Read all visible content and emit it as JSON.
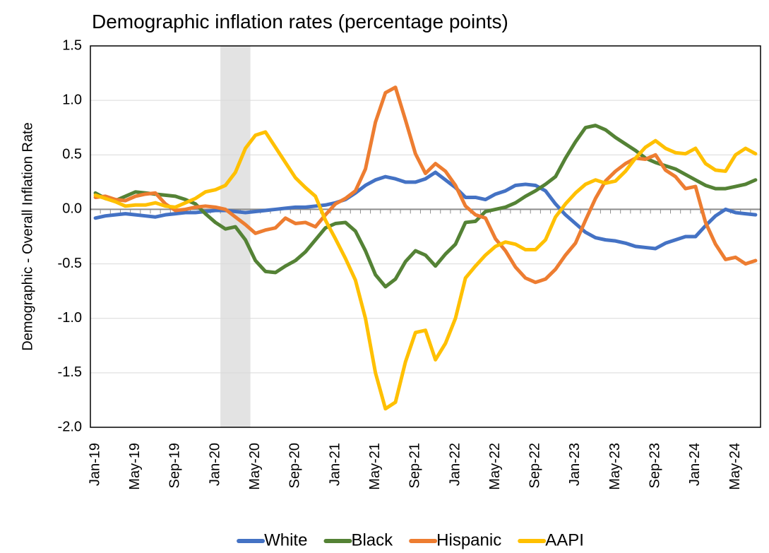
{
  "chart_data": {
    "type": "line",
    "title": "Demographic inflation rates (percentage points)",
    "y_label": "Demographic - Overall Inflation Rate",
    "categories": [
      "Jan-19",
      null,
      null,
      null,
      "May-19",
      null,
      null,
      null,
      "Sep-19",
      null,
      null,
      null,
      "Jan-20",
      null,
      null,
      null,
      "May-20",
      null,
      null,
      null,
      "Sep-20",
      null,
      null,
      null,
      "Jan-21",
      null,
      null,
      null,
      "May-21",
      null,
      null,
      null,
      "Sep-21",
      null,
      null,
      null,
      "Jan-22",
      null,
      null,
      null,
      "May-22",
      null,
      null,
      null,
      "Sep-22",
      null,
      null,
      null,
      "Jan-23",
      null,
      null,
      null,
      "May-23",
      null,
      null,
      null,
      "Sep-23",
      null,
      null,
      null,
      "Jan-24",
      null,
      null,
      null,
      "May-24",
      null,
      null
    ],
    "series": [
      {
        "name": "White",
        "color": "#4472c4",
        "values": [
          -0.08,
          -0.06,
          -0.05,
          -0.04,
          -0.05,
          -0.06,
          -0.07,
          -0.05,
          -0.04,
          -0.03,
          -0.03,
          -0.02,
          -0.01,
          -0.01,
          -0.02,
          -0.03,
          -0.02,
          -0.01,
          0.0,
          0.01,
          0.02,
          0.02,
          0.03,
          0.04,
          0.06,
          0.09,
          0.15,
          0.22,
          0.27,
          0.3,
          0.28,
          0.25,
          0.25,
          0.28,
          0.34,
          0.27,
          0.2,
          0.11,
          0.11,
          0.09,
          0.14,
          0.17,
          0.22,
          0.23,
          0.22,
          0.17,
          0.05,
          -0.05,
          -0.13,
          -0.21,
          -0.26,
          -0.28,
          -0.29,
          -0.31,
          -0.34,
          -0.35,
          -0.36,
          -0.31,
          -0.28,
          -0.25,
          -0.25,
          -0.15,
          -0.06,
          0.0,
          -0.03,
          -0.04,
          -0.05
        ]
      },
      {
        "name": "Black",
        "color": "#548235",
        "values": [
          0.15,
          0.1,
          0.08,
          0.12,
          0.16,
          0.15,
          0.14,
          0.13,
          0.12,
          0.09,
          0.05,
          -0.04,
          -0.12,
          -0.18,
          -0.16,
          -0.28,
          -0.47,
          -0.57,
          -0.58,
          -0.52,
          -0.47,
          -0.39,
          -0.28,
          -0.17,
          -0.13,
          -0.12,
          -0.2,
          -0.38,
          -0.6,
          -0.71,
          -0.64,
          -0.48,
          -0.38,
          -0.42,
          -0.52,
          -0.41,
          -0.32,
          -0.12,
          -0.11,
          -0.02,
          0.0,
          0.02,
          0.06,
          0.12,
          0.17,
          0.23,
          0.3,
          0.47,
          0.62,
          0.75,
          0.77,
          0.73,
          0.66,
          0.6,
          0.54,
          0.47,
          0.43,
          0.4,
          0.37,
          0.32,
          0.27,
          0.22,
          0.19,
          0.19,
          0.21,
          0.23,
          0.27
        ]
      },
      {
        "name": "Hispanic",
        "color": "#ed7d31",
        "values": [
          0.11,
          0.12,
          0.09,
          0.08,
          0.12,
          0.14,
          0.15,
          0.05,
          -0.01,
          0.0,
          0.02,
          0.03,
          0.02,
          0.0,
          -0.07,
          -0.14,
          -0.22,
          -0.19,
          -0.17,
          -0.08,
          -0.13,
          -0.12,
          -0.16,
          -0.05,
          0.05,
          0.1,
          0.17,
          0.37,
          0.8,
          1.07,
          1.12,
          0.82,
          0.51,
          0.33,
          0.42,
          0.35,
          0.22,
          0.03,
          -0.05,
          -0.08,
          -0.27,
          -0.38,
          -0.53,
          -0.63,
          -0.67,
          -0.64,
          -0.55,
          -0.42,
          -0.31,
          -0.1,
          0.1,
          0.26,
          0.35,
          0.42,
          0.47,
          0.46,
          0.5,
          0.36,
          0.3,
          0.19,
          0.21,
          -0.12,
          -0.32,
          -0.46,
          -0.44,
          -0.5,
          -0.47
        ]
      },
      {
        "name": "AAPI",
        "color": "#ffc000",
        "values": [
          0.13,
          0.1,
          0.07,
          0.03,
          0.04,
          0.04,
          0.06,
          0.03,
          0.02,
          0.06,
          0.1,
          0.16,
          0.18,
          0.22,
          0.34,
          0.56,
          0.68,
          0.71,
          0.57,
          0.43,
          0.29,
          0.2,
          0.12,
          -0.1,
          -0.27,
          -0.45,
          -0.65,
          -1.0,
          -1.5,
          -1.83,
          -1.77,
          -1.4,
          -1.13,
          -1.11,
          -1.38,
          -1.23,
          -1.0,
          -0.63,
          -0.52,
          -0.42,
          -0.34,
          -0.3,
          -0.32,
          -0.37,
          -0.37,
          -0.28,
          -0.07,
          0.05,
          0.15,
          0.23,
          0.27,
          0.24,
          0.26,
          0.35,
          0.47,
          0.57,
          0.63,
          0.56,
          0.52,
          0.51,
          0.56,
          0.42,
          0.36,
          0.35,
          0.5,
          0.56,
          0.51
        ]
      }
    ],
    "ylim": [
      -2,
      1.5
    ],
    "yticks": [
      -1.5,
      {
        "value": -2,
        "label": "-2.0"
      },
      {
        "value": -1,
        "label": "-1.0"
      },
      -0.5,
      {
        "value": 0,
        "label": "0.0"
      },
      0.5,
      {
        "value": 1,
        "label": "1.0"
      },
      1.5
    ],
    "shaded_range": [
      13,
      15
    ],
    "shade_color": "#e3e3e3",
    "grid": true,
    "legend": "bottom"
  }
}
